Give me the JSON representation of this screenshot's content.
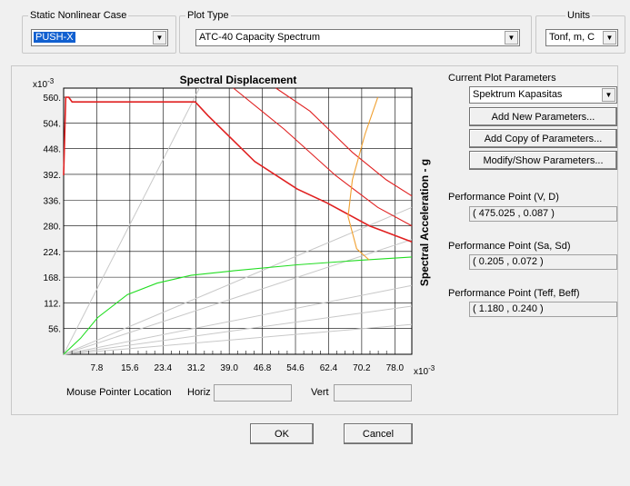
{
  "case_group": {
    "title": "Static Nonlinear Case",
    "value": "PUSH-X"
  },
  "plot_type_group": {
    "title": "Plot Type",
    "value": "ATC-40 Capacity Spectrum"
  },
  "units_group": {
    "title": "Units",
    "value": "Tonf, m, C"
  },
  "chart": {
    "title": "Spectral Displacement",
    "ylabel": "Spectral Acceleration - g",
    "y_exponent": "x10",
    "y_exponent_power": "-3",
    "x_exponent": "x10",
    "x_exponent_power": "-3",
    "x_ticks": [
      "7.8",
      "15.6",
      "23.4",
      "31.2",
      "39.0",
      "46.8",
      "54.6",
      "62.4",
      "70.2",
      "78.0"
    ],
    "y_ticks": [
      "560.",
      "504.",
      "448.",
      "392.",
      "336.",
      "280.",
      "224.",
      "168.",
      "112.",
      "56."
    ],
    "colors": {
      "demand": "#e02020",
      "capacity": "#22dd22",
      "performance": "#f0a030",
      "period": "#c8c8c8"
    }
  },
  "chart_data": {
    "type": "line",
    "title": "Spectral Displacement",
    "xlabel": "",
    "ylabel": "Spectral Acceleration - g",
    "xlim": [
      0,
      82
    ],
    "ylim": [
      0,
      580
    ],
    "series": [
      {
        "color": "#22dd22",
        "x": [
          0,
          4,
          8,
          15,
          22,
          30,
          40,
          55,
          70,
          82
        ],
        "y": [
          0,
          35,
          80,
          130,
          155,
          172,
          182,
          195,
          205,
          212
        ]
      },
      {
        "color": "#e02020",
        "x": [
          0,
          0.5,
          1.2,
          2,
          31,
          34,
          45,
          55,
          62,
          72,
          82
        ],
        "y": [
          390,
          560,
          560,
          550,
          550,
          520,
          420,
          360,
          330,
          280,
          245
        ]
      },
      {
        "color": "#e02020",
        "x": [
          40,
          52,
          64,
          74,
          82
        ],
        "y": [
          580,
          490,
          390,
          320,
          280
        ]
      },
      {
        "color": "#e02020",
        "x": [
          50,
          58,
          68,
          76,
          82
        ],
        "y": [
          580,
          530,
          440,
          380,
          345
        ]
      },
      {
        "color": "#f0a030",
        "x": [
          74,
          71,
          68,
          67,
          69,
          72
        ],
        "y": [
          560,
          480,
          380,
          300,
          230,
          205
        ]
      }
    ]
  },
  "mouse": {
    "label": "Mouse Pointer Location",
    "horiz_label": "Horiz",
    "vert_label": "Vert"
  },
  "params": {
    "title": "Current Plot Parameters",
    "selection": "Spektrum Kapasitas",
    "buttons": [
      "Add New Parameters...",
      "Add Copy of Parameters...",
      "Modify/Show Parameters..."
    ]
  },
  "performance": [
    {
      "label": "Performance Point (V, D)",
      "value": "( 475.025 , 0.087 )"
    },
    {
      "label": "Performance Point (Sa, Sd)",
      "value": "( 0.205 , 0.072 )"
    },
    {
      "label": "Performance Point (Teff, Beff)",
      "value": "( 1.180 , 0.240 )"
    }
  ],
  "footer": {
    "ok": "OK",
    "cancel": "Cancel"
  }
}
